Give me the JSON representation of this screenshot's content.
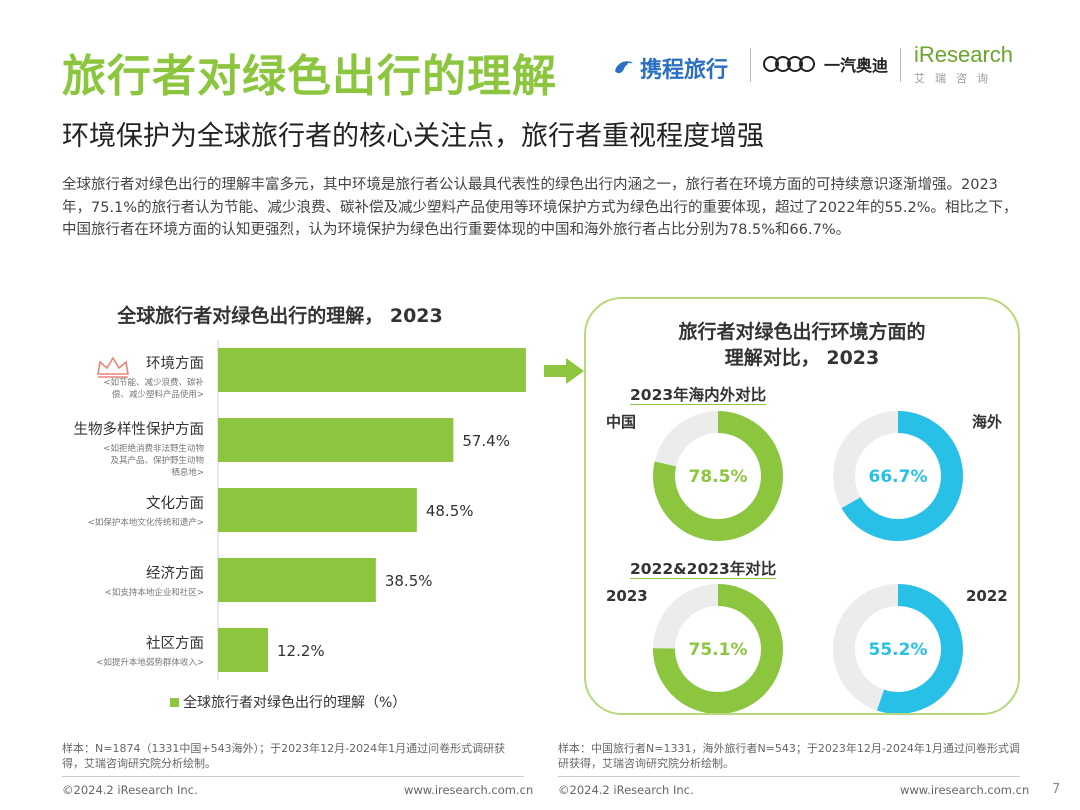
{
  "header": {
    "title": "旅行者对绿色出行的理解",
    "subtitle": "环境保护为全球旅行者的核心关注点，旅行者重视程度增强",
    "intro": "全球旅行者对绿色出行的理解丰富多元，其中环境是旅行者公认最具代表性的绿色出行内涵之一，旅行者在环境方面的可持续意识逐渐增强。2023年，75.1%的旅行者认为节能、减少浪费、碳补偿及减少塑料产品使用等环境保护方式为绿色出行的重要体现，超过了2022年的55.2%。相比之下，中国旅行者在环境方面的认知更强烈，认为环境保护为绿色出行重要体现的中国和海外旅行者占比分别为78.5%和66.7%。"
  },
  "logos": {
    "ctrip": "携程旅行",
    "audi": "一汽奥迪",
    "iresearch": "iResearch",
    "iresearch_cn": "艾瑞咨询"
  },
  "colors": {
    "green": "#8cc63f",
    "blue": "#29c0e8",
    "track": "#ececec",
    "border": "#b6d97b"
  },
  "chart_data": [
    {
      "type": "bar",
      "orientation": "horizontal",
      "title": "全球旅行者对绿色出行的理解， 2023",
      "categories": [
        "环境方面",
        "生物多样性保护方面",
        "文化方面",
        "经济方面",
        "社区方面"
      ],
      "notes": [
        [
          "<如节能、减少浪费、碳补",
          "偿、减少塑料产品使用>"
        ],
        [
          "<如拒绝消费非法野生动物",
          "及其产品、保护野生动物",
          "栖息地>"
        ],
        [
          "<如保护本地文化传统和遗产>"
        ],
        [
          "<如支持本地企业和社区>"
        ],
        [
          "<如提升本地弱势群体收入>"
        ]
      ],
      "values": [
        75.1,
        57.4,
        48.5,
        38.5,
        12.2
      ],
      "value_labels": [
        "75.1%",
        "57.4%",
        "48.5%",
        "38.5%",
        "12.2%"
      ],
      "xlim": [
        0,
        100
      ],
      "legend": "全球旅行者对绿色出行的理解（%）",
      "legend_position": "bottom"
    },
    {
      "type": "pie",
      "style": "donut",
      "panel_title": [
        "旅行者对绿色出行环境方面的",
        "理解对比， 2023"
      ],
      "section_title": "2023年海内外对比",
      "items": [
        {
          "name": "中国",
          "value": 78.5,
          "label": "78.5%",
          "color": "#8cc63f"
        },
        {
          "name": "海外",
          "value": 66.7,
          "label": "66.7%",
          "color": "#29c0e8"
        }
      ]
    },
    {
      "type": "pie",
      "style": "donut",
      "section_title": "2022&2023年对比",
      "items": [
        {
          "name": "2023",
          "value": 75.1,
          "label": "75.1%",
          "color": "#8cc63f"
        },
        {
          "name": "2022",
          "value": 55.2,
          "label": "55.2%",
          "color": "#29c0e8"
        }
      ]
    }
  ],
  "notes": {
    "left": "样本：N=1874（1331中国+543海外）；于2023年12月-2024年1月通过问卷形式调研获得，艾瑞咨询研究院分析绘制。",
    "right": "样本：中国旅行者N=1331，海外旅行者N=543；于2023年12月-2024年1月通过问卷形式调研获得，艾瑞咨询研究院分析绘制。"
  },
  "footer": {
    "copyright_left": "©2024.2 iResearch Inc.",
    "url_left": "www.iresearch.com.cn",
    "copyright_right": "©2024.2 iResearch Inc.",
    "url_right": "www.iresearch.com.cn",
    "page": "7"
  }
}
